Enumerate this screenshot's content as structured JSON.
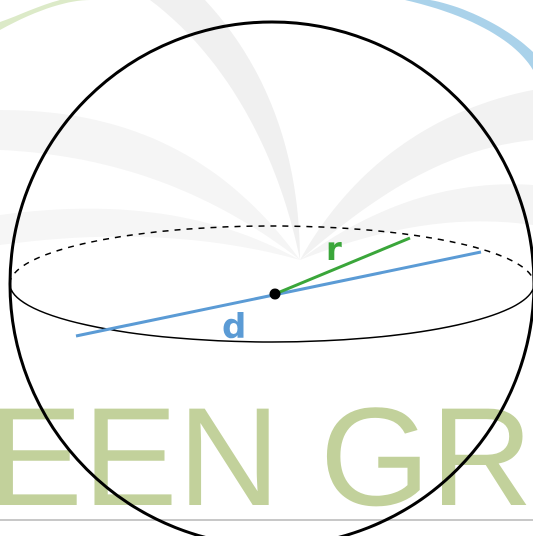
{
  "diagram": {
    "labels": {
      "radius": "r",
      "diameter": "d"
    },
    "colors": {
      "outline": "#000000",
      "radius": "#3aa63a",
      "diameter": "#5b9bd5",
      "center": "#000000"
    }
  },
  "watermark": {
    "text": "EEN GR",
    "colors": {
      "text": "#b8c98a",
      "swoosh_light": "#e4e4e4",
      "swoosh_blue": "#8ec3e3",
      "swoosh_green": "#c5dca3",
      "rule": "#c8c8c8"
    }
  }
}
